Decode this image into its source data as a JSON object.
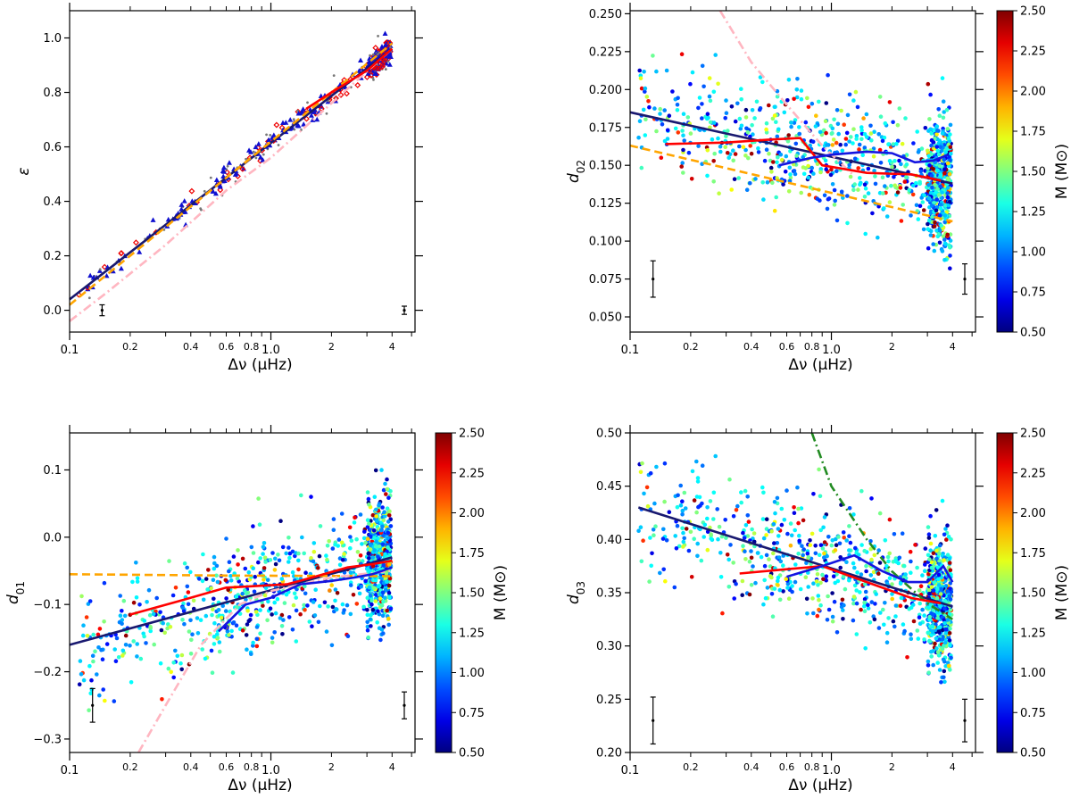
{
  "chart_data": [
    {
      "type": "scatter",
      "panel": "top-left",
      "xscale": "log",
      "xlim": [
        0.1,
        5.2
      ],
      "ylim": [
        -0.08,
        1.1
      ],
      "xlabel": "Δν (μHz)",
      "ylabel": "ε",
      "xticks_major": [
        "0.1",
        "1.0"
      ],
      "xticks_minor_labeled": [
        "0.2",
        "0.4",
        "0.6",
        "0.8",
        "2",
        "4"
      ],
      "yticks": [
        "0.0",
        "0.2",
        "0.4",
        "0.6",
        "0.8",
        "1.0"
      ],
      "colorbar": false,
      "series": [
        {
          "kind": "line",
          "color": "#191970",
          "style": "solid",
          "x": [
            0.1,
            4
          ],
          "y": [
            0.04,
            0.96
          ]
        },
        {
          "kind": "line",
          "color": "#ffa500",
          "style": "dashed",
          "x": [
            0.1,
            4
          ],
          "y": [
            0.02,
            0.98
          ]
        },
        {
          "kind": "line",
          "color": "#ffb6c1",
          "style": "dashdot",
          "x": [
            0.1,
            0.15,
            0.3,
            0.6,
            1.0,
            2,
            4
          ],
          "y": [
            -0.04,
            0.06,
            0.24,
            0.44,
            0.56,
            0.76,
            0.96
          ]
        },
        {
          "kind": "line",
          "color": "#ff0000",
          "style": "solid",
          "x": [
            1.5,
            2,
            3,
            4
          ],
          "y": [
            0.74,
            0.8,
            0.88,
            0.96
          ]
        }
      ],
      "errorbars": [
        {
          "x": 0.145,
          "y": 0.0,
          "err": 0.02
        },
        {
          "x": 4.6,
          "y": 0.0,
          "err": 0.015
        }
      ]
    },
    {
      "type": "scatter",
      "panel": "top-right",
      "xscale": "log",
      "xlim": [
        0.1,
        5.2
      ],
      "ylim": [
        0.04,
        0.252
      ],
      "xlabel": "Δν (μHz)",
      "ylabel": "d02",
      "xticks_major": [
        "0.1",
        "1.0"
      ],
      "xticks_minor_labeled": [
        "0.2",
        "0.4",
        "0.6",
        "0.8",
        "2",
        "4"
      ],
      "yticks": [
        "0.050",
        "0.075",
        "0.100",
        "0.125",
        "0.150",
        "0.175",
        "0.200",
        "0.225",
        "0.250"
      ],
      "colorbar": true,
      "series": [
        {
          "kind": "line",
          "color": "#191970",
          "style": "solid",
          "x": [
            0.1,
            4
          ],
          "y": [
            0.185,
            0.138
          ]
        },
        {
          "kind": "line",
          "color": "#ffa500",
          "style": "dashed",
          "x": [
            0.1,
            4
          ],
          "y": [
            0.163,
            0.113
          ]
        },
        {
          "kind": "line",
          "color": "#ffb6c1",
          "style": "dashdot",
          "x": [
            0.28,
            0.4,
            0.6,
            0.9,
            1.3
          ],
          "y": [
            0.252,
            0.218,
            0.19,
            0.163,
            0.143
          ]
        },
        {
          "kind": "line",
          "color": "#ff0000",
          "style": "solid",
          "x": [
            0.15,
            0.3,
            0.5,
            0.7,
            0.9,
            1.5,
            2.5,
            3.5
          ],
          "y": [
            0.164,
            0.165,
            0.167,
            0.168,
            0.15,
            0.145,
            0.144,
            0.14
          ]
        },
        {
          "kind": "line",
          "color": "#1515e0",
          "style": "solid",
          "x": [
            0.55,
            0.8,
            1.0,
            1.5,
            2.0,
            2.6,
            3.2,
            3.8
          ],
          "y": [
            0.15,
            0.155,
            0.157,
            0.159,
            0.158,
            0.152,
            0.153,
            0.157
          ]
        }
      ],
      "errorbars": [
        {
          "x": 0.13,
          "y": 0.075,
          "err": 0.012
        },
        {
          "x": 4.6,
          "y": 0.075,
          "err": 0.01
        }
      ]
    },
    {
      "type": "scatter",
      "panel": "bottom-left",
      "xscale": "log",
      "xlim": [
        0.1,
        5.2
      ],
      "ylim": [
        -0.32,
        0.155
      ],
      "xlabel": "Δν (μHz)",
      "ylabel": "d01",
      "xticks_major": [
        "0.1",
        "1.0"
      ],
      "xticks_minor_labeled": [
        "0.2",
        "0.4",
        "0.6",
        "0.8",
        "2",
        "4"
      ],
      "yticks": [
        "−0.3",
        "−0.2",
        "−0.1",
        "0.0",
        "0.1"
      ],
      "colorbar": true,
      "series": [
        {
          "kind": "line",
          "color": "#191970",
          "style": "solid",
          "x": [
            0.1,
            4
          ],
          "y": [
            -0.16,
            -0.03
          ]
        },
        {
          "kind": "line",
          "color": "#ffa500",
          "style": "dashed",
          "x": [
            0.1,
            0.6,
            4
          ],
          "y": [
            -0.055,
            -0.057,
            -0.058
          ]
        },
        {
          "kind": "line",
          "color": "#ffb6c1",
          "style": "dashdot",
          "x": [
            0.22,
            0.3,
            0.45,
            0.7,
            1.0,
            2,
            4
          ],
          "y": [
            -0.32,
            -0.25,
            -0.16,
            -0.1,
            -0.08,
            -0.06,
            -0.05
          ]
        },
        {
          "kind": "line",
          "color": "#ff0000",
          "style": "solid",
          "x": [
            0.2,
            0.35,
            0.6,
            0.8,
            1.2,
            1.6,
            2.4,
            3.2,
            4
          ],
          "y": [
            -0.115,
            -0.095,
            -0.075,
            -0.073,
            -0.07,
            -0.06,
            -0.045,
            -0.04,
            -0.035
          ]
        },
        {
          "kind": "line",
          "color": "#1515e0",
          "style": "solid",
          "x": [
            0.55,
            0.75,
            1.0,
            1.4,
            2.0,
            2.6,
            3.2,
            4
          ],
          "y": [
            -0.14,
            -0.1,
            -0.09,
            -0.07,
            -0.065,
            -0.06,
            -0.055,
            -0.045
          ]
        }
      ],
      "errorbars": [
        {
          "x": 0.13,
          "y": -0.25,
          "err": 0.025
        },
        {
          "x": 4.6,
          "y": -0.25,
          "err": 0.02
        }
      ]
    },
    {
      "type": "scatter",
      "panel": "bottom-right",
      "xscale": "log",
      "xlim": [
        0.1,
        5.2
      ],
      "ylim": [
        0.2,
        0.5
      ],
      "xlabel": "Δν (μHz)",
      "ylabel": "d03",
      "xticks_major": [
        "0.1",
        "1.0"
      ],
      "xticks_minor_labeled": [
        "0.2",
        "0.4",
        "0.6",
        "0.8",
        "2",
        "4"
      ],
      "yticks": [
        "0.20",
        "0.25",
        "0.30",
        "0.35",
        "0.40",
        "0.45",
        "0.50"
      ],
      "colorbar": true,
      "series": [
        {
          "kind": "line",
          "color": "#191970",
          "style": "solid",
          "x": [
            0.11,
            4
          ],
          "y": [
            0.43,
            0.337
          ]
        },
        {
          "kind": "line",
          "color": "#228b22",
          "style": "dashdot",
          "x": [
            0.8,
            1.0,
            1.5,
            2,
            3,
            4
          ],
          "y": [
            0.5,
            0.45,
            0.4,
            0.37,
            0.34,
            0.325
          ]
        },
        {
          "kind": "line",
          "color": "#ff0000",
          "style": "solid",
          "x": [
            0.35,
            0.6,
            0.9,
            1.5,
            2.5,
            3.5
          ],
          "y": [
            0.368,
            0.372,
            0.375,
            0.36,
            0.345,
            0.34
          ]
        },
        {
          "kind": "line",
          "color": "#1515e0",
          "style": "solid",
          "x": [
            0.6,
            0.9,
            1.3,
            1.8,
            2.4,
            3.0,
            3.6,
            4
          ],
          "y": [
            0.365,
            0.375,
            0.385,
            0.37,
            0.36,
            0.36,
            0.375,
            0.36
          ]
        }
      ],
      "errorbars": [
        {
          "x": 0.13,
          "y": 0.23,
          "err": 0.022
        },
        {
          "x": 4.6,
          "y": 0.23,
          "err": 0.02
        }
      ]
    }
  ],
  "colorbar_data": {
    "label": "M (M⊙)",
    "range": [
      0.5,
      2.5
    ],
    "ticks": [
      "0.50",
      "0.75",
      "1.00",
      "1.25",
      "1.50",
      "1.75",
      "2.00",
      "2.25",
      "2.50"
    ],
    "colormap": "jet"
  }
}
